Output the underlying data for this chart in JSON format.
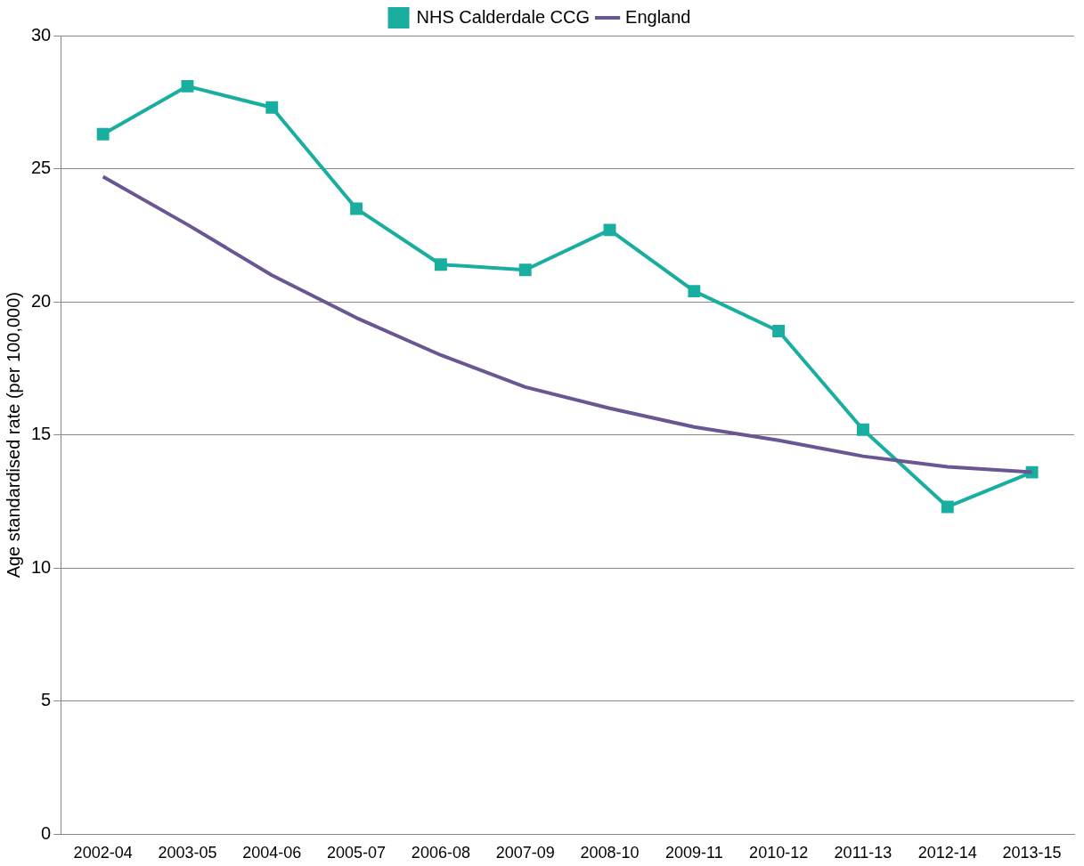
{
  "chart_data": {
    "type": "line",
    "ylabel": "Age standardised rate (per 100,000)",
    "categories": [
      "2002-04",
      "2003-05",
      "2004-06",
      "2005-07",
      "2006-08",
      "2007-09",
      "2008-10",
      "2009-11",
      "2010-12",
      "2011-13",
      "2012-14",
      "2013-15"
    ],
    "series": [
      {
        "name": "NHS Calderdale CCG",
        "color": "#19ae9f",
        "marker": "square",
        "values": [
          26.3,
          28.1,
          27.3,
          23.5,
          21.4,
          21.2,
          22.7,
          20.4,
          18.9,
          15.2,
          12.3,
          13.6
        ]
      },
      {
        "name": "England",
        "color": "#6a5693",
        "marker": "none",
        "values": [
          24.7,
          22.9,
          21.0,
          19.4,
          18.0,
          16.8,
          16.0,
          15.3,
          14.8,
          14.2,
          13.8,
          13.6
        ]
      }
    ],
    "ylim": [
      0,
      30
    ],
    "yticks": [
      0,
      5,
      10,
      15,
      20,
      25,
      30
    ],
    "grid": "y",
    "legend": "top"
  }
}
